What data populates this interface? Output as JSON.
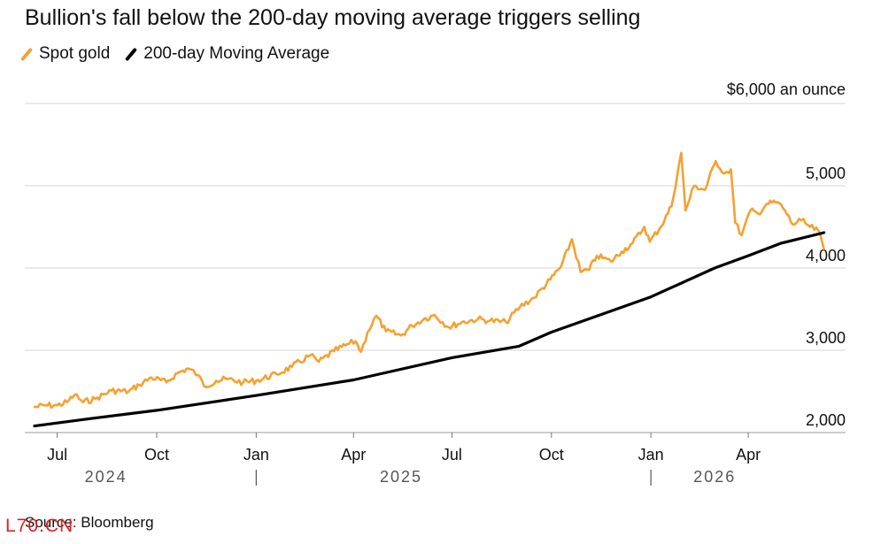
{
  "chart_data": {
    "type": "line",
    "title": "Bullion's fall below the 200-day moving average triggers selling",
    "source": "Source: Bloomberg",
    "unit_label": "$6,000 an ounce",
    "ylim": [
      2000,
      6000
    ],
    "y_ticks": [
      {
        "value": 2000,
        "label": "2,000"
      },
      {
        "value": 3000,
        "label": "3,000"
      },
      {
        "value": 4000,
        "label": "4,000"
      },
      {
        "value": 5000,
        "label": "5,000"
      },
      {
        "value": 6000,
        "label": ""
      }
    ],
    "x_range": [
      "2024-06-01",
      "2026-06-30"
    ],
    "x_ticks": [
      {
        "date": "2024-07-01",
        "label": "Jul"
      },
      {
        "date": "2024-10-01",
        "label": "Oct"
      },
      {
        "date": "2025-01-01",
        "label": "Jan"
      },
      {
        "date": "2025-04-01",
        "label": "Apr"
      },
      {
        "date": "2025-07-01",
        "label": "Jul"
      },
      {
        "date": "2025-10-01",
        "label": "Oct"
      },
      {
        "date": "2026-01-01",
        "label": "Jan"
      },
      {
        "date": "2026-04-01",
        "label": "Apr"
      }
    ],
    "year_labels": [
      {
        "date": "2024-08-15",
        "label": "2024"
      },
      {
        "date": "2025-05-15",
        "label": "2025"
      },
      {
        "date": "2026-03-01",
        "label": "2026"
      }
    ],
    "year_dividers": [
      "2025-01-01",
      "2026-01-01"
    ],
    "legend_placement": "top-left",
    "series": [
      {
        "name": "Spot gold",
        "color": "#f5a131",
        "points": [
          [
            "2024-06-10",
            2310
          ],
          [
            "2024-06-20",
            2330
          ],
          [
            "2024-07-01",
            2330
          ],
          [
            "2024-07-10",
            2370
          ],
          [
            "2024-07-17",
            2460
          ],
          [
            "2024-07-25",
            2370
          ],
          [
            "2024-08-05",
            2410
          ],
          [
            "2024-08-20",
            2510
          ],
          [
            "2024-09-05",
            2500
          ],
          [
            "2024-09-15",
            2580
          ],
          [
            "2024-09-26",
            2670
          ],
          [
            "2024-10-10",
            2610
          ],
          [
            "2024-10-20",
            2720
          ],
          [
            "2024-10-30",
            2780
          ],
          [
            "2024-11-08",
            2700
          ],
          [
            "2024-11-14",
            2560
          ],
          [
            "2024-11-25",
            2630
          ],
          [
            "2024-12-05",
            2650
          ],
          [
            "2024-12-20",
            2610
          ],
          [
            "2025-01-01",
            2630
          ],
          [
            "2025-01-20",
            2710
          ],
          [
            "2025-02-03",
            2800
          ],
          [
            "2025-02-20",
            2940
          ],
          [
            "2025-02-28",
            2860
          ],
          [
            "2025-03-14",
            2990
          ],
          [
            "2025-03-28",
            3080
          ],
          [
            "2025-04-03",
            3110
          ],
          [
            "2025-04-08",
            2980
          ],
          [
            "2025-04-14",
            3220
          ],
          [
            "2025-04-22",
            3420
          ],
          [
            "2025-05-01",
            3230
          ],
          [
            "2025-05-15",
            3180
          ],
          [
            "2025-05-25",
            3300
          ],
          [
            "2025-06-05",
            3380
          ],
          [
            "2025-06-15",
            3430
          ],
          [
            "2025-06-28",
            3280
          ],
          [
            "2025-07-10",
            3340
          ],
          [
            "2025-07-25",
            3380
          ],
          [
            "2025-08-05",
            3360
          ],
          [
            "2025-08-20",
            3340
          ],
          [
            "2025-09-02",
            3530
          ],
          [
            "2025-09-15",
            3640
          ],
          [
            "2025-09-30",
            3860
          ],
          [
            "2025-10-10",
            4020
          ],
          [
            "2025-10-20",
            4350
          ],
          [
            "2025-10-28",
            3950
          ],
          [
            "2025-11-05",
            3980
          ],
          [
            "2025-11-12",
            4150
          ],
          [
            "2025-11-25",
            4080
          ],
          [
            "2025-12-05",
            4200
          ],
          [
            "2025-12-15",
            4300
          ],
          [
            "2025-12-26",
            4500
          ],
          [
            "2025-12-31",
            4320
          ],
          [
            "2026-01-10",
            4500
          ],
          [
            "2026-01-20",
            4750
          ],
          [
            "2026-01-29",
            5400
          ],
          [
            "2026-02-02",
            4700
          ],
          [
            "2026-02-10",
            5000
          ],
          [
            "2026-02-20",
            4950
          ],
          [
            "2026-03-02",
            5300
          ],
          [
            "2026-03-10",
            5150
          ],
          [
            "2026-03-16",
            5200
          ],
          [
            "2026-03-20",
            4550
          ],
          [
            "2026-03-26",
            4400
          ],
          [
            "2026-04-03",
            4700
          ],
          [
            "2026-04-10",
            4660
          ],
          [
            "2026-04-18",
            4780
          ],
          [
            "2026-04-28",
            4800
          ],
          [
            "2026-05-05",
            4700
          ],
          [
            "2026-05-12",
            4530
          ],
          [
            "2026-05-20",
            4580
          ],
          [
            "2026-05-28",
            4500
          ],
          [
            "2026-06-05",
            4450
          ],
          [
            "2026-06-10",
            4230
          ]
        ]
      },
      {
        "name": "200-day Moving Average",
        "color": "#000000",
        "points": [
          [
            "2024-06-10",
            2080
          ],
          [
            "2024-08-01",
            2170
          ],
          [
            "2024-10-01",
            2270
          ],
          [
            "2025-01-01",
            2450
          ],
          [
            "2025-04-01",
            2640
          ],
          [
            "2025-07-01",
            2910
          ],
          [
            "2025-09-01",
            3050
          ],
          [
            "2025-10-01",
            3220
          ],
          [
            "2026-01-01",
            3650
          ],
          [
            "2026-03-01",
            4000
          ],
          [
            "2026-04-01",
            4150
          ],
          [
            "2026-05-01",
            4300
          ],
          [
            "2026-06-10",
            4430
          ]
        ]
      }
    ]
  }
}
